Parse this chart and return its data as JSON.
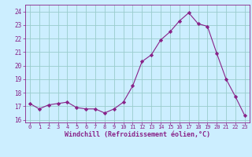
{
  "x": [
    0,
    1,
    2,
    3,
    4,
    5,
    6,
    7,
    8,
    9,
    10,
    11,
    12,
    13,
    14,
    15,
    16,
    17,
    18,
    19,
    20,
    21,
    22,
    23
  ],
  "y": [
    17.2,
    16.8,
    17.1,
    17.2,
    17.3,
    16.9,
    16.8,
    16.8,
    16.5,
    16.8,
    17.3,
    18.5,
    20.3,
    20.8,
    21.9,
    22.5,
    23.3,
    23.9,
    23.1,
    22.9,
    20.9,
    19.0,
    17.7,
    16.3
  ],
  "line_color": "#882288",
  "marker": "D",
  "marker_size": 2.2,
  "bg_color": "#cceeff",
  "grid_color": "#99cccc",
  "xlabel": "Windchill (Refroidissement éolien,°C)",
  "xlabel_color": "#882288",
  "tick_color": "#882288",
  "ylim": [
    15.8,
    24.5
  ],
  "xlim": [
    -0.5,
    23.5
  ],
  "yticks": [
    16,
    17,
    18,
    19,
    20,
    21,
    22,
    23,
    24
  ],
  "xticks": [
    0,
    1,
    2,
    3,
    4,
    5,
    6,
    7,
    8,
    9,
    10,
    11,
    12,
    13,
    14,
    15,
    16,
    17,
    18,
    19,
    20,
    21,
    22,
    23
  ],
  "xtick_labels": [
    "0",
    "1",
    "2",
    "3",
    "4",
    "5",
    "6",
    "7",
    "8",
    "9",
    "10",
    "11",
    "12",
    "13",
    "14",
    "15",
    "16",
    "17",
    "18",
    "19",
    "20",
    "21",
    "22",
    "23"
  ]
}
